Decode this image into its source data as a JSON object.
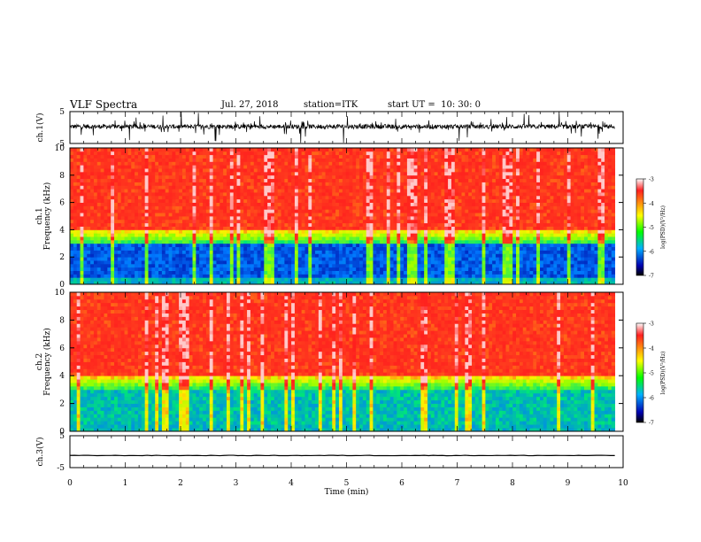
{
  "header": {
    "title": "VLF Spectra",
    "date": "Jul. 27, 2018",
    "station": "station=ITK",
    "start": "start UT =  10: 30: 0"
  },
  "chart_data": [
    {
      "type": "line",
      "name": "ch1-waveform",
      "ylabel": "ch.1(V)",
      "ylim": [
        -5,
        5
      ],
      "yticks": [
        "5",
        "-5"
      ],
      "xlim": [
        0,
        10
      ],
      "style": "noisy waveform with spikes",
      "baseline": 0.3
    },
    {
      "type": "heatmap",
      "name": "ch1-spectrogram",
      "ylabel_lines": [
        "ch.1",
        "Frequency (kHz)"
      ],
      "ylim": [
        0,
        10
      ],
      "yticks": [
        "0",
        "2",
        "4",
        "6",
        "8",
        "10"
      ],
      "xlim": [
        0,
        9.85
      ],
      "colorbar": {
        "label": "log(PSD)(V²/Hz)",
        "range": [
          -7,
          -3
        ],
        "ticks": [
          "-3",
          "-4",
          "-5",
          "-6",
          "-7"
        ]
      }
    },
    {
      "type": "heatmap",
      "name": "ch2-spectrogram",
      "ylabel_lines": [
        "ch.2",
        "Frequency (kHz)"
      ],
      "ylim": [
        0,
        10
      ],
      "yticks": [
        "0",
        "2",
        "4",
        "6",
        "8",
        "10"
      ],
      "xlim": [
        0,
        9.85
      ],
      "colorbar": {
        "label": "log(PSD)(V²/Hz)",
        "range": [
          -7,
          -3
        ],
        "ticks": [
          "-3",
          "-4",
          "-5",
          "-6",
          "-7"
        ]
      }
    },
    {
      "type": "line",
      "name": "ch3-waveform",
      "ylabel": "ch.3(V)",
      "ylim": [
        -5,
        5
      ],
      "yticks": [
        "5",
        "-5"
      ],
      "xlim": [
        0,
        10
      ],
      "style": "flat line",
      "baseline": -1.2
    }
  ],
  "xaxis": {
    "label": "Time (min)",
    "ticks": [
      "0",
      "1",
      "2",
      "3",
      "4",
      "5",
      "6",
      "7",
      "8",
      "9",
      "10"
    ]
  },
  "colors": {
    "waveform": "#000000",
    "cbar_stops": [
      "#ffffff",
      "#ff2020",
      "#ffff00",
      "#00ff00",
      "#00b0ff",
      "#0000b0",
      "#000000"
    ]
  }
}
